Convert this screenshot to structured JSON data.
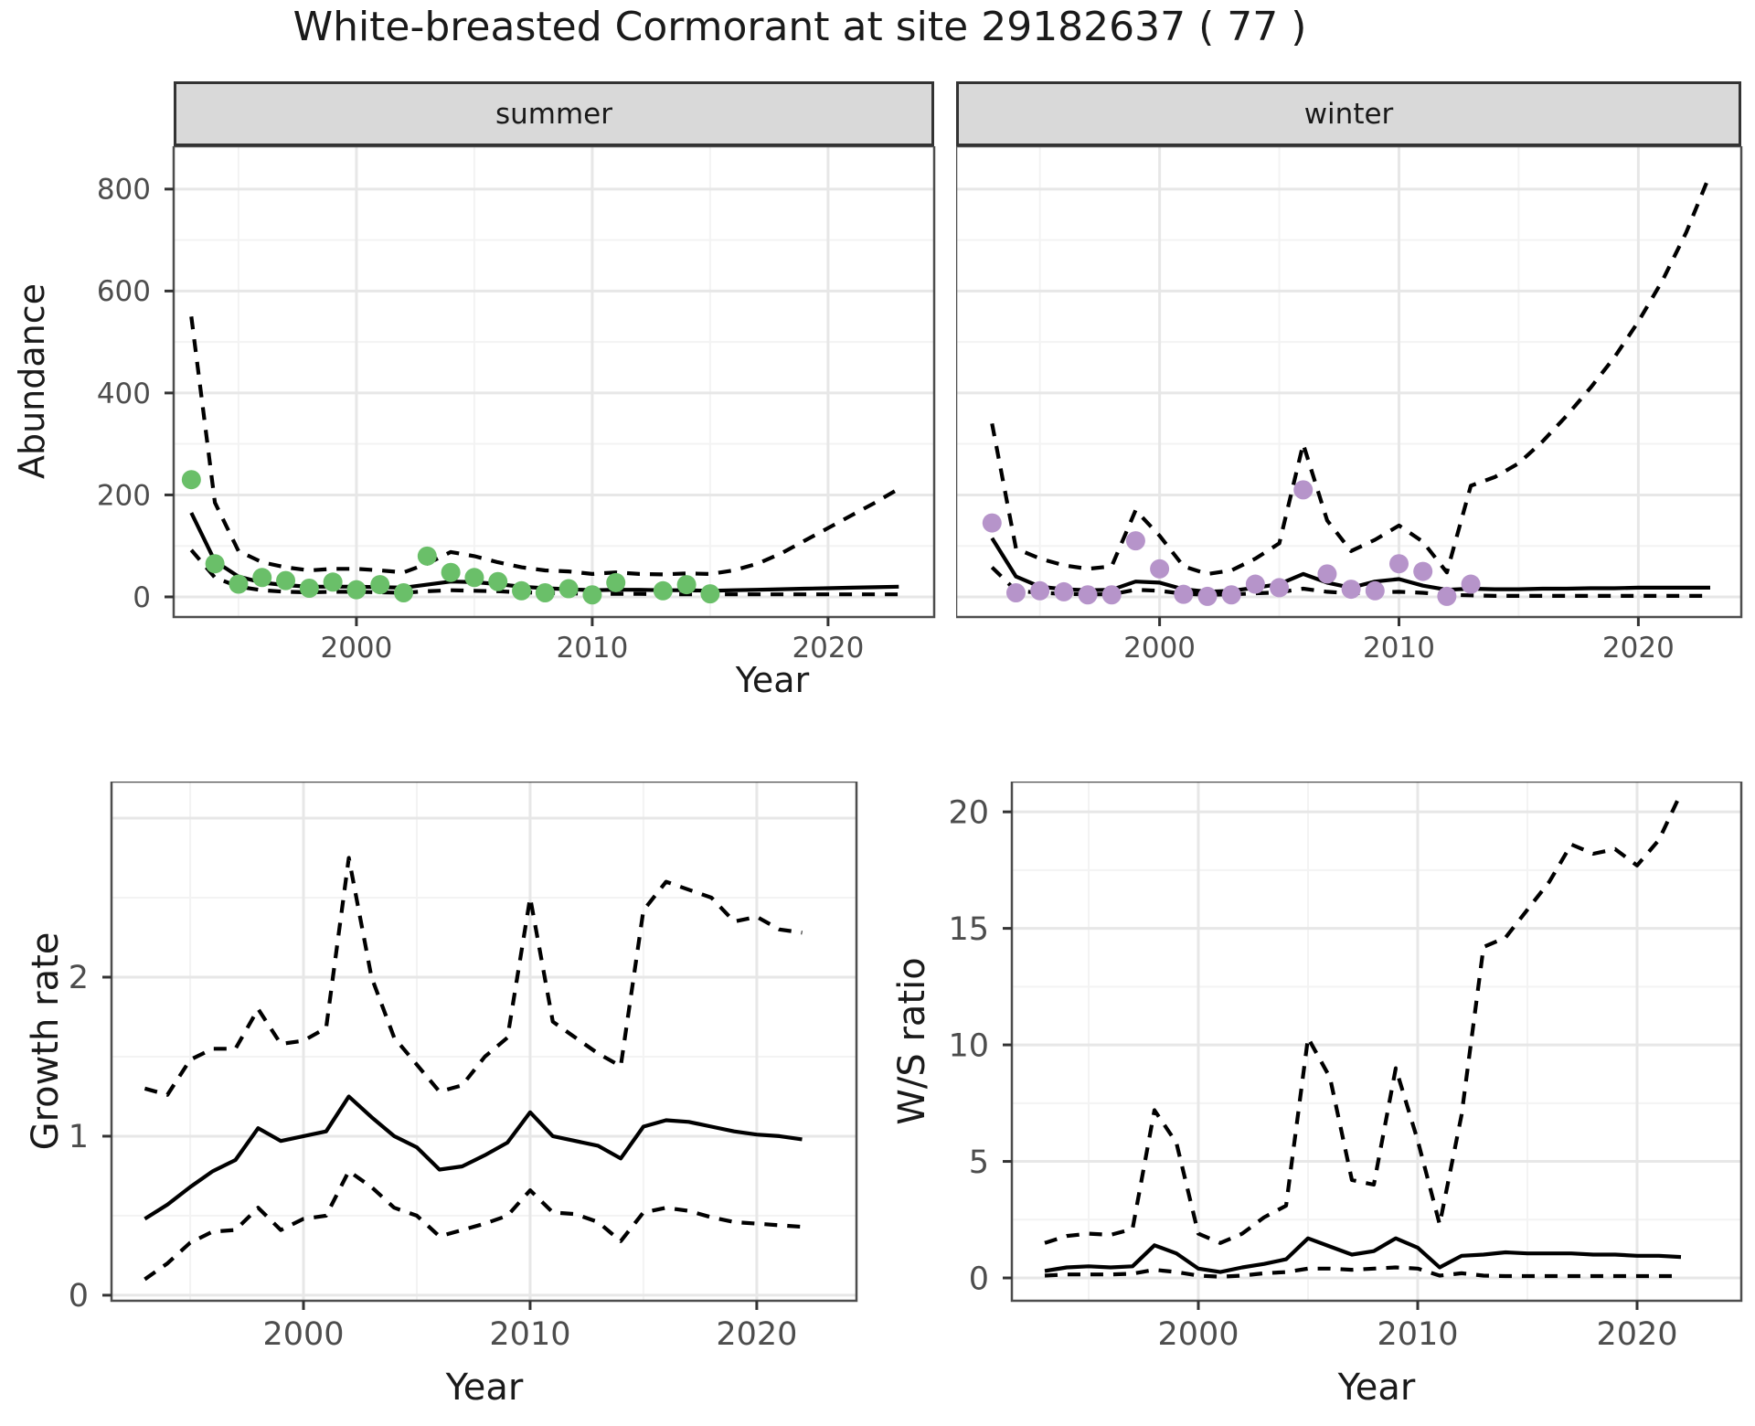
{
  "title": "White-breasted Cormorant at site 29182637 ( 77 )",
  "colors": {
    "background": "#ffffff",
    "strip_bg": "#d9d9d9",
    "strip_border": "#333333",
    "panel_border": "#4d4d4d",
    "grid_major": "#e7e7e7",
    "grid_minor": "#f3f3f3",
    "tick_mark": "#333333",
    "tick_label": "#4d4d4d",
    "line": "#000000",
    "summer_point": "#6abf69",
    "winter_point": "#b694ca"
  },
  "chart_data": [
    {
      "id": "abundance-summer",
      "type": "line",
      "facet": "summer",
      "xlabel": "Year",
      "ylabel": "Abundance",
      "xlim": [
        1992.25,
        2024.5
      ],
      "ylim": [
        -39.5,
        884
      ],
      "x_major": [
        2000,
        2010,
        2020
      ],
      "x_minor": [
        1995,
        2005,
        2015
      ],
      "y_major": [
        0,
        200,
        400,
        600,
        800
      ],
      "y_minor": [
        100,
        300,
        500,
        700
      ],
      "x_tick_labels": [
        "2000",
        "2010",
        "2020"
      ],
      "y_tick_labels": [
        "0",
        "200",
        "400",
        "600",
        "800"
      ],
      "series": [
        {
          "name": "upper-ci",
          "style": "dashed",
          "color": "#000000",
          "x": [
            1993,
            1994,
            1995,
            1996,
            1997,
            1998,
            1999,
            2000,
            2001,
            2002,
            2003,
            2004,
            2005,
            2006,
            2007,
            2008,
            2009,
            2010,
            2011,
            2012,
            2013,
            2014,
            2015,
            2016,
            2017,
            2018,
            2019,
            2020,
            2021,
            2022,
            2023
          ],
          "y": [
            550,
            185,
            90,
            68,
            58,
            52,
            55,
            55,
            52,
            48,
            65,
            88,
            80,
            68,
            58,
            52,
            50,
            45,
            48,
            45,
            44,
            46,
            45,
            52,
            65,
            85,
            110,
            135,
            160,
            185,
            212
          ]
        },
        {
          "name": "lower-ci",
          "style": "dashed",
          "color": "#000000",
          "x": [
            1993,
            1994,
            1995,
            1996,
            1997,
            1998,
            1999,
            2000,
            2001,
            2002,
            2003,
            2004,
            2005,
            2006,
            2007,
            2008,
            2009,
            2010,
            2011,
            2012,
            2013,
            2014,
            2015,
            2016,
            2017,
            2018,
            2019,
            2020,
            2021,
            2022,
            2023
          ],
          "y": [
            92,
            38,
            20,
            13,
            10,
            9,
            10,
            10,
            9,
            8,
            11,
            13,
            12,
            11,
            9,
            8,
            7,
            6,
            6,
            6,
            5,
            5,
            5,
            5,
            5,
            5,
            5,
            5,
            5,
            5,
            5
          ]
        },
        {
          "name": "fitted",
          "style": "solid",
          "color": "#000000",
          "x": [
            1993,
            1994,
            1995,
            1996,
            1997,
            1998,
            1999,
            2000,
            2001,
            2002,
            2003,
            2004,
            2005,
            2006,
            2007,
            2008,
            2009,
            2010,
            2011,
            2012,
            2013,
            2014,
            2015,
            2016,
            2017,
            2018,
            2019,
            2020,
            2021,
            2022,
            2023
          ],
          "y": [
            165,
            70,
            40,
            28,
            23,
            20,
            20,
            20,
            19,
            18,
            24,
            30,
            29,
            25,
            20,
            17,
            15,
            13,
            14,
            14,
            13,
            13,
            12,
            13,
            14,
            15,
            16,
            17,
            18,
            19,
            20
          ]
        },
        {
          "name": "observed",
          "style": "points",
          "color": "#6abf69",
          "x": [
            1993,
            1994,
            1995,
            1996,
            1997,
            1998,
            1999,
            2000,
            2001,
            2002,
            2003,
            2004,
            2005,
            2006,
            2007,
            2008,
            2009,
            2010,
            2011,
            2013,
            2014,
            2015
          ],
          "y": [
            230,
            65,
            25,
            38,
            32,
            17,
            29,
            14,
            24,
            8,
            80,
            48,
            38,
            30,
            12,
            8,
            16,
            4,
            28,
            12,
            24,
            6
          ]
        }
      ]
    },
    {
      "id": "abundance-winter",
      "type": "line",
      "facet": "winter",
      "xlabel": "Year",
      "ylabel": "Abundance",
      "xlim": [
        1991.5,
        2024.3
      ],
      "ylim": [
        -39.5,
        884
      ],
      "x_major": [
        2000,
        2010,
        2020
      ],
      "x_minor": [
        1995,
        2005,
        2015
      ],
      "y_major": [
        0,
        200,
        400,
        600,
        800
      ],
      "y_minor": [
        100,
        300,
        500,
        700
      ],
      "x_tick_labels": [
        "2000",
        "2010",
        "2020"
      ],
      "y_tick_labels": [],
      "series": [
        {
          "name": "upper-ci",
          "style": "dashed",
          "color": "#000000",
          "x": [
            1993,
            1994,
            1995,
            1996,
            1997,
            1998,
            1999,
            2000,
            2001,
            2002,
            2003,
            2004,
            2005,
            2006,
            2007,
            2008,
            2009,
            2010,
            2011,
            2012,
            2013,
            2014,
            2015,
            2016,
            2017,
            2018,
            2019,
            2020,
            2021,
            2022,
            2023
          ],
          "y": [
            340,
            95,
            75,
            62,
            55,
            60,
            170,
            120,
            60,
            45,
            52,
            75,
            105,
            300,
            150,
            90,
            112,
            140,
            108,
            48,
            218,
            235,
            262,
            305,
            355,
            410,
            470,
            540,
            620,
            715,
            830
          ]
        },
        {
          "name": "lower-ci",
          "style": "dashed",
          "color": "#000000",
          "x": [
            1993,
            1994,
            1995,
            1996,
            1997,
            1998,
            1999,
            2000,
            2001,
            2002,
            2003,
            2004,
            2005,
            2006,
            2007,
            2008,
            2009,
            2010,
            2011,
            2012,
            2013,
            2014,
            2015,
            2016,
            2017,
            2018,
            2019,
            2020,
            2021,
            2022,
            2023
          ],
          "y": [
            58,
            12,
            8,
            6,
            5,
            5,
            14,
            12,
            6,
            4,
            5,
            7,
            9,
            16,
            10,
            7,
            9,
            10,
            8,
            4,
            3,
            2,
            2,
            2,
            2,
            2,
            2,
            2,
            2,
            2,
            2
          ]
        },
        {
          "name": "fitted",
          "style": "solid",
          "color": "#000000",
          "x": [
            1993,
            1994,
            1995,
            1996,
            1997,
            1998,
            1999,
            2000,
            2001,
            2002,
            2003,
            2004,
            2005,
            2006,
            2007,
            2008,
            2009,
            2010,
            2011,
            2012,
            2013,
            2014,
            2015,
            2016,
            2017,
            2018,
            2019,
            2020,
            2021,
            2022,
            2023
          ],
          "y": [
            115,
            40,
            20,
            15,
            13,
            14,
            30,
            28,
            15,
            10,
            12,
            18,
            25,
            45,
            28,
            18,
            30,
            35,
            22,
            14,
            16,
            15,
            15,
            16,
            16,
            17,
            17,
            18,
            18,
            18,
            18
          ]
        },
        {
          "name": "observed",
          "style": "points",
          "color": "#b694ca",
          "x": [
            1993,
            1994,
            1995,
            1996,
            1997,
            1998,
            1999,
            2000,
            2001,
            2002,
            2003,
            2004,
            2005,
            2006,
            2007,
            2008,
            2009,
            2010,
            2011,
            2012,
            2013
          ],
          "y": [
            145,
            8,
            12,
            10,
            4,
            4,
            110,
            55,
            5,
            1,
            4,
            25,
            18,
            210,
            45,
            15,
            12,
            65,
            50,
            1,
            25
          ]
        }
      ]
    },
    {
      "id": "growth-rate",
      "type": "line",
      "facet": "",
      "xlabel": "Year",
      "ylabel": "Growth rate",
      "xlim": [
        1991.53,
        2024.4
      ],
      "ylim": [
        -0.035,
        3.23
      ],
      "x_major": [
        2000,
        2010,
        2020
      ],
      "x_minor": [
        1995,
        2005,
        2015
      ],
      "y_major": [
        0,
        1,
        2,
        3
      ],
      "y_minor": [
        0.5,
        1.5,
        2.5
      ],
      "x_tick_labels": [
        "2000",
        "2010",
        "2020"
      ],
      "y_tick_labels": [
        "0",
        "1",
        "2"
      ],
      "series": [
        {
          "name": "upper-ci",
          "style": "dashed",
          "color": "#000000",
          "x": [
            1993,
            1994,
            1995,
            1996,
            1997,
            1998,
            1999,
            2000,
            2001,
            2002,
            2003,
            2004,
            2005,
            2006,
            2007,
            2008,
            2009,
            2010,
            2011,
            2012,
            2013,
            2014,
            2015,
            2016,
            2017,
            2018,
            2019,
            2020,
            2021,
            2022
          ],
          "y": [
            1.3,
            1.26,
            1.48,
            1.55,
            1.55,
            1.8,
            1.58,
            1.6,
            1.68,
            2.75,
            2.0,
            1.62,
            1.45,
            1.28,
            1.32,
            1.5,
            1.62,
            2.5,
            1.72,
            1.62,
            1.52,
            1.44,
            2.42,
            2.6,
            2.55,
            2.5,
            2.35,
            2.38,
            2.3,
            2.28
          ]
        },
        {
          "name": "lower-ci",
          "style": "dashed",
          "color": "#000000",
          "x": [
            1993,
            1994,
            1995,
            1996,
            1997,
            1998,
            1999,
            2000,
            2001,
            2002,
            2003,
            2004,
            2005,
            2006,
            2007,
            2008,
            2009,
            2010,
            2011,
            2012,
            2013,
            2014,
            2015,
            2016,
            2017,
            2018,
            2019,
            2020,
            2021,
            2022
          ],
          "y": [
            0.1,
            0.2,
            0.33,
            0.4,
            0.41,
            0.55,
            0.41,
            0.48,
            0.5,
            0.78,
            0.68,
            0.55,
            0.5,
            0.37,
            0.41,
            0.45,
            0.5,
            0.66,
            0.52,
            0.51,
            0.46,
            0.34,
            0.52,
            0.55,
            0.53,
            0.49,
            0.46,
            0.45,
            0.44,
            0.43
          ]
        },
        {
          "name": "fitted",
          "style": "solid",
          "color": "#000000",
          "x": [
            1993,
            1994,
            1995,
            1996,
            1997,
            1998,
            1999,
            2000,
            2001,
            2002,
            2003,
            2004,
            2005,
            2006,
            2007,
            2008,
            2009,
            2010,
            2011,
            2012,
            2013,
            2014,
            2015,
            2016,
            2017,
            2018,
            2019,
            2020,
            2021,
            2022
          ],
          "y": [
            0.48,
            0.57,
            0.68,
            0.78,
            0.85,
            1.05,
            0.97,
            1.0,
            1.03,
            1.25,
            1.12,
            1.0,
            0.93,
            0.79,
            0.81,
            0.88,
            0.96,
            1.15,
            1.0,
            0.97,
            0.94,
            0.86,
            1.06,
            1.1,
            1.09,
            1.06,
            1.03,
            1.01,
            1.0,
            0.98
          ]
        }
      ]
    },
    {
      "id": "ws-ratio",
      "type": "line",
      "facet": "",
      "xlabel": "Year",
      "ylabel": "W/S ratio",
      "xlim": [
        1991.5,
        2024.75
      ],
      "ylim": [
        -0.98,
        21.3
      ],
      "x_major": [
        2000,
        2010,
        2020
      ],
      "x_minor": [
        1995,
        2005,
        2015
      ],
      "y_major": [
        0,
        5,
        10,
        15,
        20
      ],
      "y_minor": [
        2.5,
        7.5,
        12.5,
        17.5
      ],
      "x_tick_labels": [
        "2000",
        "2010",
        "2020"
      ],
      "y_tick_labels": [
        "0",
        "5",
        "10",
        "15",
        "20"
      ],
      "series": [
        {
          "name": "upper-ci",
          "style": "dashed",
          "color": "#000000",
          "x": [
            1993,
            1994,
            1995,
            1996,
            1997,
            1998,
            1999,
            2000,
            2001,
            2002,
            2003,
            2004,
            2005,
            2006,
            2007,
            2008,
            2009,
            2010,
            2011,
            2012,
            2013,
            2014,
            2015,
            2016,
            2017,
            2018,
            2019,
            2020,
            2021,
            2022
          ],
          "y": [
            1.5,
            1.8,
            1.9,
            1.85,
            2.1,
            7.2,
            5.8,
            1.9,
            1.5,
            1.9,
            2.6,
            3.1,
            10.3,
            8.6,
            4.2,
            4.0,
            9.0,
            5.9,
            2.3,
            7.0,
            14.2,
            14.6,
            15.8,
            17.0,
            18.6,
            18.2,
            18.4,
            17.7,
            18.8,
            20.8
          ]
        },
        {
          "name": "lower-ci",
          "style": "dashed",
          "color": "#000000",
          "x": [
            1993,
            1994,
            1995,
            1996,
            1997,
            1998,
            1999,
            2000,
            2001,
            2002,
            2003,
            2004,
            2005,
            2006,
            2007,
            2008,
            2009,
            2010,
            2011,
            2012,
            2013,
            2014,
            2015,
            2016,
            2017,
            2018,
            2019,
            2020,
            2021,
            2022
          ],
          "y": [
            0.1,
            0.15,
            0.15,
            0.15,
            0.18,
            0.35,
            0.25,
            0.1,
            0.05,
            0.1,
            0.2,
            0.25,
            0.4,
            0.4,
            0.35,
            0.4,
            0.45,
            0.4,
            0.1,
            0.2,
            0.1,
            0.08,
            0.08,
            0.08,
            0.08,
            0.08,
            0.08,
            0.08,
            0.08,
            0.08
          ]
        },
        {
          "name": "fitted",
          "style": "solid",
          "color": "#000000",
          "x": [
            1993,
            1994,
            1995,
            1996,
            1997,
            1998,
            1999,
            2000,
            2001,
            2002,
            2003,
            2004,
            2005,
            2006,
            2007,
            2008,
            2009,
            2010,
            2011,
            2012,
            2013,
            2014,
            2015,
            2016,
            2017,
            2018,
            2019,
            2020,
            2021,
            2022
          ],
          "y": [
            0.3,
            0.45,
            0.5,
            0.45,
            0.5,
            1.4,
            1.05,
            0.4,
            0.25,
            0.45,
            0.6,
            0.8,
            1.7,
            1.35,
            1.0,
            1.15,
            1.7,
            1.3,
            0.45,
            0.95,
            1.0,
            1.1,
            1.05,
            1.05,
            1.05,
            1.0,
            1.0,
            0.95,
            0.95,
            0.9
          ]
        }
      ]
    }
  ]
}
